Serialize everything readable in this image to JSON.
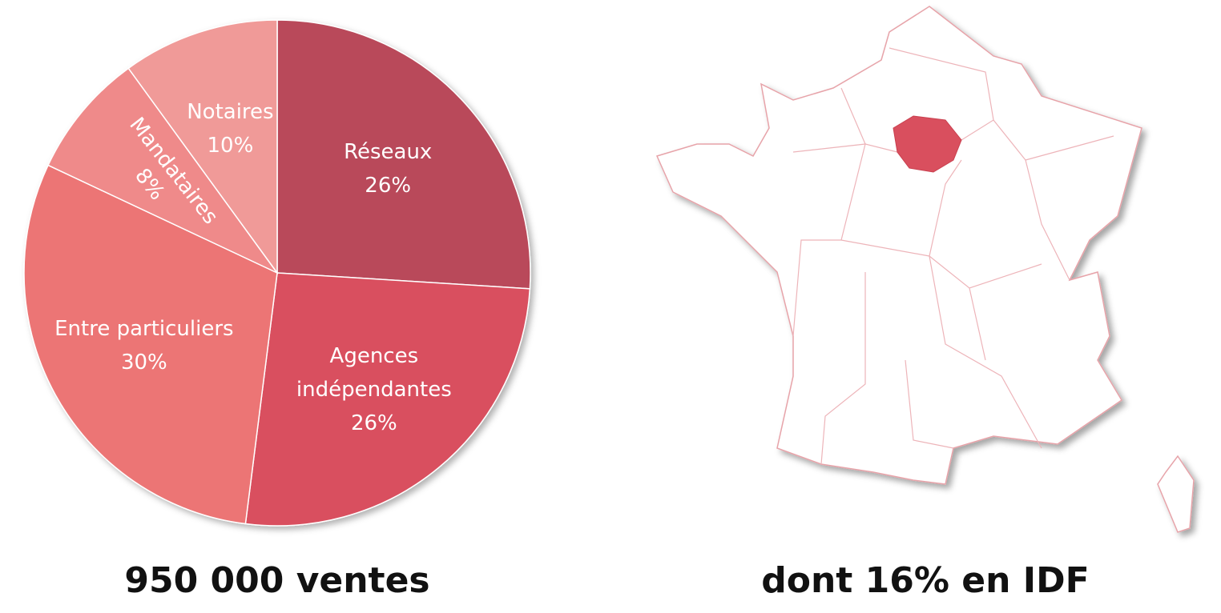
{
  "chart_data": {
    "type": "pie",
    "categories": [
      "Réseaux",
      "Agences indépendantes",
      "Entre particuliers",
      "Mandataires",
      "Notaires"
    ],
    "values": [
      26,
      26,
      30,
      8,
      10
    ],
    "value_labels": [
      "26%",
      "26%",
      "30%",
      "8%",
      "10%"
    ],
    "colors": [
      "#b94a5a",
      "#d94f5e",
      "#ec7575",
      "#ef8a8a",
      "#f09a98"
    ],
    "caption": "950 000 ventes"
  },
  "map": {
    "caption": "dont 16% en IDF"
  }
}
